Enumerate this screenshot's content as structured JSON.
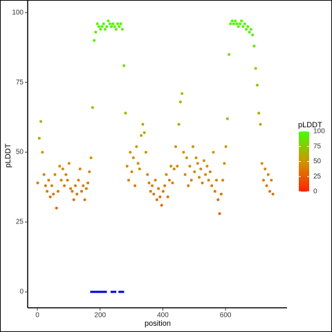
{
  "chart_data": {
    "type": "scatter",
    "xlabel": "position",
    "ylabel": "pLDDT",
    "xlim": [
      -31,
      796
    ],
    "ylim": [
      -5.7,
      104.5
    ],
    "xticks": [
      0,
      200,
      400,
      600
    ],
    "yticks": [
      0,
      25,
      50,
      75,
      100
    ],
    "grid": false,
    "legend": {
      "title": "pLDDT",
      "position": "right",
      "ticks": [
        0,
        25,
        50,
        75,
        100
      ],
      "lim": [
        0,
        100
      ]
    },
    "color_stops": [
      {
        "value": 0,
        "color": "#ff2200"
      },
      {
        "value": 50,
        "color": "#cf9500"
      },
      {
        "value": 100,
        "color": "#44ff00"
      }
    ],
    "series": [
      {
        "color_by_value": true,
        "x": [
          1,
          6,
          11,
          16,
          21,
          26,
          31,
          36,
          41,
          46,
          51,
          56,
          61,
          66,
          71,
          76,
          81,
          86,
          91,
          96,
          101,
          106,
          111,
          116,
          121,
          126,
          131,
          136,
          141,
          146,
          151,
          156,
          161,
          166,
          171,
          176,
          181,
          186,
          191,
          196,
          201,
          206,
          211,
          216,
          221,
          226,
          231,
          236,
          241,
          246,
          251,
          256,
          261,
          266,
          271,
          276,
          281,
          286,
          291,
          296,
          301,
          306,
          311,
          316,
          321,
          326,
          331,
          336,
          341,
          346,
          351,
          356,
          361,
          366,
          371,
          376,
          381,
          386,
          391,
          396,
          401,
          406,
          411,
          416,
          421,
          426,
          431,
          436,
          441,
          446,
          451,
          456,
          461,
          466,
          471,
          476,
          481,
          486,
          491,
          496,
          501,
          506,
          511,
          516,
          521,
          526,
          531,
          536,
          541,
          546,
          551,
          556,
          561,
          566,
          571,
          576,
          581,
          586,
          591,
          596,
          601,
          606,
          611,
          616,
          621,
          626,
          631,
          636,
          641,
          646,
          651,
          656,
          661,
          666,
          671,
          676,
          681,
          686,
          691,
          696,
          701,
          706,
          711,
          716,
          721,
          726,
          731,
          736,
          741,
          746,
          751
        ],
        "values": [
          39,
          55,
          61,
          50,
          42,
          38,
          36,
          40,
          34,
          38,
          35,
          42,
          30,
          36,
          45,
          40,
          44,
          38,
          42,
          40,
          46,
          37,
          36,
          33,
          38,
          35,
          40,
          44,
          36,
          38,
          33,
          37,
          39,
          43,
          48,
          66,
          90,
          93,
          96,
          95,
          94,
          95,
          96,
          94,
          95,
          97,
          96,
          95,
          96,
          95,
          94,
          96,
          95,
          96,
          94,
          81,
          64,
          45,
          40,
          50,
          43,
          48,
          38,
          52,
          46,
          44,
          56,
          60,
          57,
          50,
          42,
          39,
          36,
          38,
          35,
          40,
          33,
          37,
          34,
          31,
          36,
          38,
          42,
          34,
          40,
          45,
          39,
          44,
          52,
          45,
          60,
          68,
          71,
          50,
          42,
          48,
          38,
          45,
          40,
          52,
          43,
          48,
          46,
          41,
          44,
          39,
          47,
          42,
          45,
          40,
          43,
          38,
          50,
          36,
          40,
          33,
          28,
          35,
          40,
          46,
          52,
          62,
          85,
          96,
          97,
          96,
          97,
          96,
          95,
          96,
          97,
          95,
          96,
          94,
          95,
          93,
          94,
          92,
          88,
          80,
          74,
          64,
          60,
          46,
          40,
          44,
          38,
          42,
          36,
          40,
          35
        ]
      },
      {
        "color": "#0000dd",
        "x": [
          175,
          180,
          185,
          190,
          195,
          205,
          210,
          215,
          240,
          245,
          265,
          270
        ],
        "values": [
          0,
          0,
          0,
          0,
          0,
          0,
          0,
          0,
          0,
          0,
          0,
          0
        ]
      }
    ]
  }
}
